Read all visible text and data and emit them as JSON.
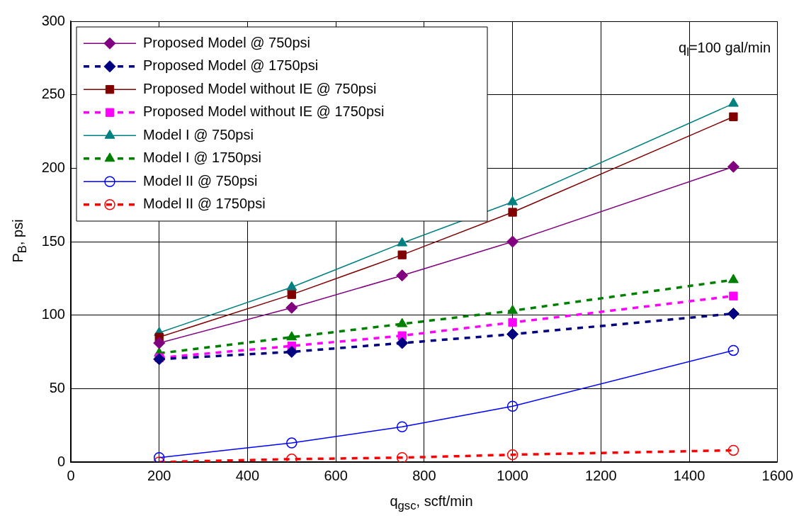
{
  "chart_data": {
    "type": "line",
    "xlabel": "q$_{gsc}$, scft/min",
    "ylabel": "P$_{B}$, psi",
    "annotations": [
      "q$_{l}$=100 gal/min"
    ],
    "x": [
      200,
      500,
      750,
      1000,
      1500
    ],
    "xlim": [
      0,
      1600
    ],
    "xticks": [
      0,
      200,
      400,
      600,
      800,
      1000,
      1200,
      1400,
      1600
    ],
    "ylim": [
      0,
      300
    ],
    "yticks": [
      0,
      50,
      100,
      150,
      200,
      250,
      300
    ],
    "grid": true,
    "legend": "top left",
    "series": [
      {
        "name": "Proposed Model @ 750psi",
        "color": "#800080",
        "marker": "diamond",
        "line_style": "solid",
        "values": [
          81,
          105,
          127,
          150,
          201
        ]
      },
      {
        "name": "Proposed Model @ 1750psi",
        "color": "#000080",
        "marker": "diamond",
        "line_style": "dashed",
        "values": [
          70,
          75,
          81,
          87,
          101
        ]
      },
      {
        "name": "Proposed Model without IE @ 750psi",
        "color": "#800000",
        "marker": "square",
        "line_style": "solid",
        "values": [
          85,
          114,
          141,
          170,
          235
        ]
      },
      {
        "name": "Proposed Model without IE @ 1750psi",
        "color": "#ff00ff",
        "marker": "square",
        "line_style": "dashed",
        "values": [
          71,
          79,
          86,
          95,
          113
        ]
      },
      {
        "name": "Model I @ 750psi",
        "color": "#008080",
        "marker": "triangle",
        "line_style": "solid",
        "values": [
          88,
          119,
          149,
          177,
          244
        ]
      },
      {
        "name": "Model I @ 1750psi",
        "color": "#008000",
        "marker": "triangle",
        "line_style": "dashed",
        "values": [
          74,
          85,
          94,
          103,
          124
        ]
      },
      {
        "name": "Model II @ 750psi",
        "color": "#0000ff",
        "marker": "circle",
        "line_style": "solid",
        "values": [
          3,
          13,
          24,
          38,
          76
        ]
      },
      {
        "name": "Model II @ 1750psi",
        "color": "#ff0000",
        "marker": "circle",
        "line_style": "dashed",
        "values": [
          0,
          2,
          3,
          5,
          8
        ]
      }
    ]
  }
}
